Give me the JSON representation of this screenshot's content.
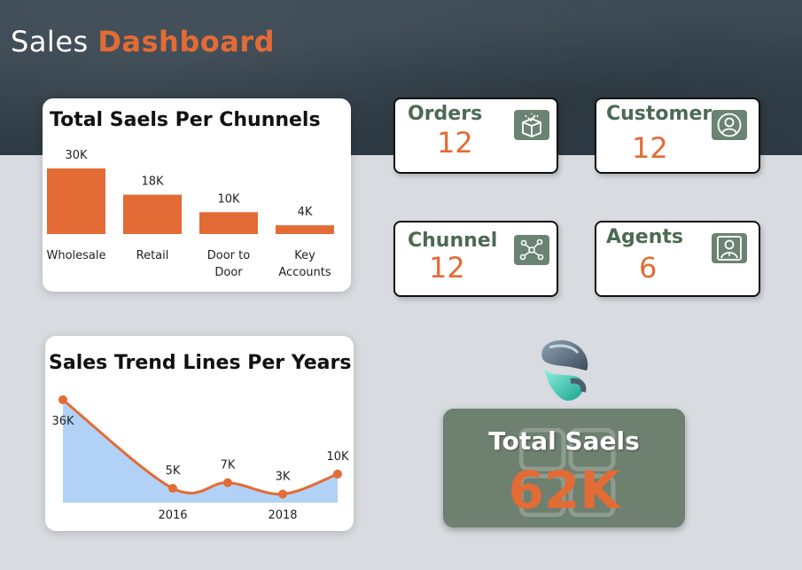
{
  "header": {
    "title_plain": "Sales",
    "title_accent": "Dashboard"
  },
  "channels_card": {
    "title": "Total Saels Per Chunnels"
  },
  "trend_card": {
    "title": "Sales Trend Lines Per Years"
  },
  "kpis": [
    {
      "label": "Orders",
      "value": "12",
      "icon": "box-icon"
    },
    {
      "label": "Customer",
      "value": "12",
      "icon": "user-circle-icon"
    },
    {
      "label": "Chunnel",
      "value": "12",
      "icon": "network-icon"
    },
    {
      "label": "Agents",
      "value": "6",
      "icon": "agent-icon"
    }
  ],
  "total": {
    "label": "Total Saels",
    "value": "62K"
  },
  "colors": {
    "accent": "#e36b35",
    "kpi_green": "#4c6a53",
    "total_bg": "#6e8070",
    "area_fill": "#a9cdf5"
  },
  "chart_data": [
    {
      "type": "bar",
      "title": "Total Saels Per Chunnels",
      "categories": [
        "Wholesale",
        "Retail",
        "Door to Door",
        "Key Accounts"
      ],
      "values": [
        30000,
        18000,
        10000,
        4000
      ],
      "data_labels": [
        "30K",
        "18K",
        "10K",
        "4K"
      ],
      "color": "#e36b35"
    },
    {
      "type": "area",
      "title": "Sales Trend Lines Per Years",
      "x": [
        2014,
        2016,
        2017,
        2018,
        2019
      ],
      "x_tick_labels": [
        "2016",
        "2018"
      ],
      "x_tick_values": [
        2016,
        2018
      ],
      "values": [
        36000,
        5000,
        7000,
        3000,
        10000
      ],
      "data_labels": [
        "36K",
        "5K",
        "7K",
        "3K",
        "10K"
      ],
      "line_color": "#e36b35",
      "fill_color": "#a9cdf5"
    }
  ]
}
